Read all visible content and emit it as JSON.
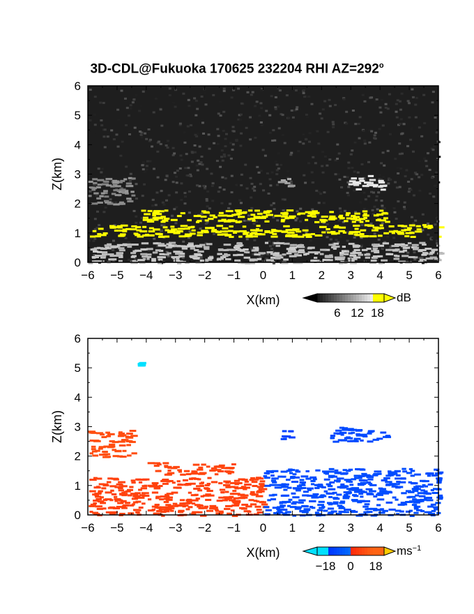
{
  "title_main": "3D-CDL@Fukuoka 170625 232204 RHI AZ=292",
  "title_sup": "o",
  "chart_data": [
    {
      "type": "heatmap",
      "quantity": "reflectivity",
      "xlabel": "X(km)",
      "ylabel": "Z(km)",
      "xlim": [
        -6,
        6
      ],
      "ylim": [
        0,
        6
      ],
      "xticks": [
        "-6",
        "-5",
        "-4",
        "-3",
        "-2",
        "-1",
        "0",
        "1",
        "2",
        "3",
        "4",
        "5",
        "6"
      ],
      "yticks": [
        "0",
        "1",
        "2",
        "3",
        "4",
        "5",
        "6"
      ],
      "colorbar": {
        "unit": "dB",
        "ticks": [
          "6",
          "12",
          "18"
        ],
        "range": [
          0,
          20
        ]
      },
      "colors": {
        "low": "#000000",
        "high": "#ffffff",
        "saturated": "#ffff00"
      },
      "features": [
        {
          "layer": "noise background",
          "x": [
            -6,
            6
          ],
          "z": [
            0,
            6
          ],
          "level": 4
        },
        {
          "layer": "near-surface return",
          "x": [
            -6,
            6
          ],
          "z": [
            0,
            0.7
          ],
          "level": 13
        },
        {
          "layer": "main echo layer",
          "x": [
            -6,
            6
          ],
          "z": [
            0.9,
            1.3
          ],
          "level": 18
        },
        {
          "layer": "upper echo streaks",
          "x": [
            -4.2,
            4.2
          ],
          "z": [
            1.4,
            1.8
          ],
          "level": 18
        },
        {
          "layer": "elevated echo",
          "x": [
            2.8,
            4.2
          ],
          "z": [
            2.5,
            3.0
          ],
          "level": 16
        },
        {
          "layer": "elevated echo",
          "x": [
            0.5,
            0.9
          ],
          "z": [
            2.6,
            2.9
          ],
          "level": 11
        },
        {
          "layer": "sloping streak",
          "x": [
            -6,
            -4.5
          ],
          "z": [
            2.0,
            2.9
          ],
          "level": 9
        }
      ]
    },
    {
      "type": "heatmap",
      "quantity": "doppler velocity",
      "xlabel": "X(km)",
      "ylabel": "Z(km)",
      "xlim": [
        -6,
        6
      ],
      "ylim": [
        0,
        6
      ],
      "xticks": [
        "-6",
        "-5",
        "-4",
        "-3",
        "-2",
        "-1",
        "0",
        "1",
        "2",
        "3",
        "4",
        "5",
        "6"
      ],
      "yticks": [
        "0",
        "1",
        "2",
        "3",
        "4",
        "5",
        "6"
      ],
      "colorbar": {
        "unit": "ms",
        "unit_sup": "-1",
        "ticks": [
          "-18",
          "0",
          "18"
        ],
        "range": [
          -24,
          24
        ]
      },
      "colors": {
        "negative": "#0040ff",
        "positive": "#ff3010",
        "background": "#ffffff"
      },
      "features": [
        {
          "region": "negative-x low layer",
          "x": [
            -6,
            0
          ],
          "z": [
            0,
            1.3
          ],
          "velocity": 7
        },
        {
          "region": "negative-x upper streaks",
          "x": [
            -4,
            -1
          ],
          "z": [
            1.4,
            1.8
          ],
          "velocity": 8
        },
        {
          "region": "sloping streak",
          "x": [
            -6,
            -4.5
          ],
          "z": [
            2.0,
            2.9
          ],
          "velocity": 10
        },
        {
          "region": "positive-x low layer",
          "x": [
            0,
            6
          ],
          "z": [
            0,
            1.6
          ],
          "velocity": -9
        },
        {
          "region": "elevated echo",
          "x": [
            2.2,
            4.2
          ],
          "z": [
            2.5,
            3.0
          ],
          "velocity": -10
        },
        {
          "region": "elevated echo",
          "x": [
            0.5,
            0.9
          ],
          "z": [
            2.6,
            2.9
          ],
          "velocity": -12
        },
        {
          "region": "isolated point",
          "x": [
            -4.3,
            -4.2
          ],
          "z": [
            5.1,
            5.2
          ],
          "velocity": -20
        }
      ]
    }
  ]
}
